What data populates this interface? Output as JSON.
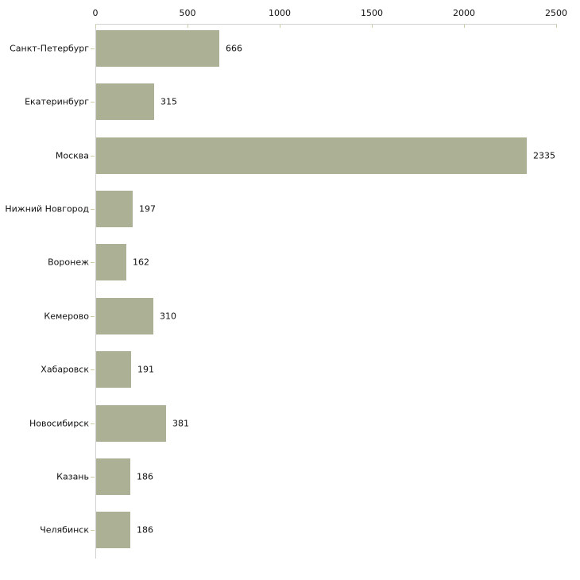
{
  "chart_data": {
    "type": "bar",
    "orientation": "horizontal",
    "title": "",
    "xlabel": "",
    "ylabel": "",
    "categories": [
      "Санкт-Петербург",
      "Екатеринбург",
      "Москва",
      "Нижний Новгород",
      "Воронеж",
      "Кемерово",
      "Хабаровск",
      "Новосибирск",
      "Казань",
      "Челябинск"
    ],
    "values": [
      666,
      315,
      2335,
      197,
      162,
      310,
      191,
      381,
      186,
      186
    ],
    "value_labels_shown": true,
    "x_ticks": [
      "0",
      "500",
      "1000",
      "1500",
      "2000",
      "2500"
    ],
    "x_tick_values": [
      0,
      500,
      1000,
      1500,
      2000,
      2500
    ],
    "xlim": [
      0,
      2500
    ],
    "grid": false,
    "legend": "none",
    "colors": {
      "bar_fill": "#acb196",
      "axis_line": "#d1d1d1",
      "tick_mark": "#cbcba4",
      "label_text": "#111111",
      "background": "#ffffff"
    }
  }
}
